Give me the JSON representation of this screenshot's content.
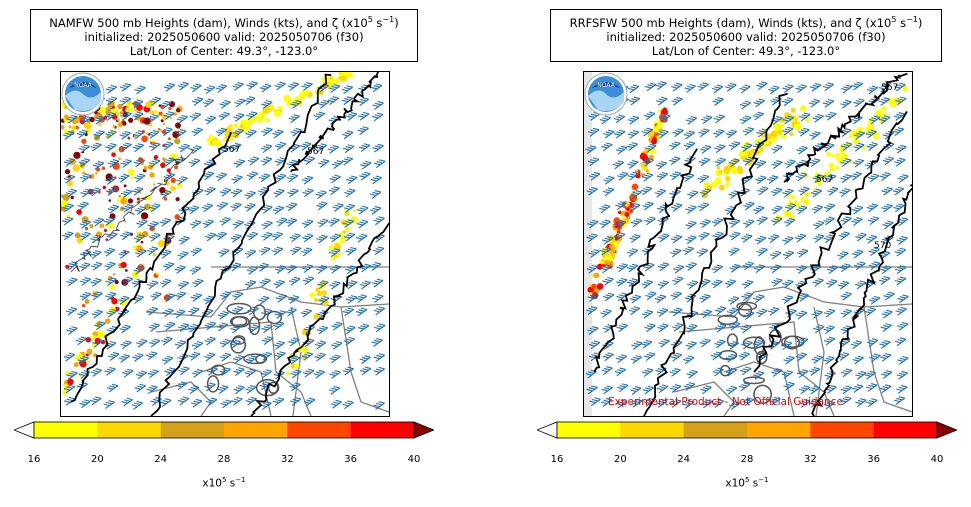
{
  "panels": [
    {
      "title_line1": "NAMFW 500 mb Heights (dam), Winds (kts), and ζ (x10",
      "title_exp": "5",
      "title_unit": " s",
      "title_unit_exp": "−1",
      "title_close": ")",
      "title_line2": "initialized: 2025050600 valid: 2025050706 (f30)",
      "title_line3": "Lat/Lon of Center: 49.3°, -123.0°",
      "contour_labels": [
        "567",
        "567"
      ]
    },
    {
      "title_line1": "RRFSFW 500 mb Heights (dam), Winds (kts), and ζ (x10",
      "title_exp": "5",
      "title_unit": " s",
      "title_unit_exp": "−1",
      "title_close": ")",
      "title_line2": "initialized: 2025050600 valid: 2025050706 (f30)",
      "title_line3": "Lat/Lon of Center: 49.3°, -123.0°",
      "contour_labels": [
        "567",
        "567",
        "570"
      ]
    }
  ],
  "colorbar": {
    "ticks": [
      "16",
      "20",
      "24",
      "28",
      "32",
      "36",
      "40"
    ],
    "colors": [
      "#ffff00",
      "#ffd700",
      "#d4a017",
      "#ffa500",
      "#ff4500",
      "#ff0000",
      "#8b0000"
    ],
    "label_base": "x10",
    "label_exp": "5",
    "label_unit": " s",
    "label_unit_exp": "−1"
  },
  "disclaimer": "Experimental Product - Not Official Guidance",
  "colors": {
    "barb": "#1f6fb5",
    "contour": "#000000",
    "border": "#808080"
  },
  "logo_text": "NOAA"
}
